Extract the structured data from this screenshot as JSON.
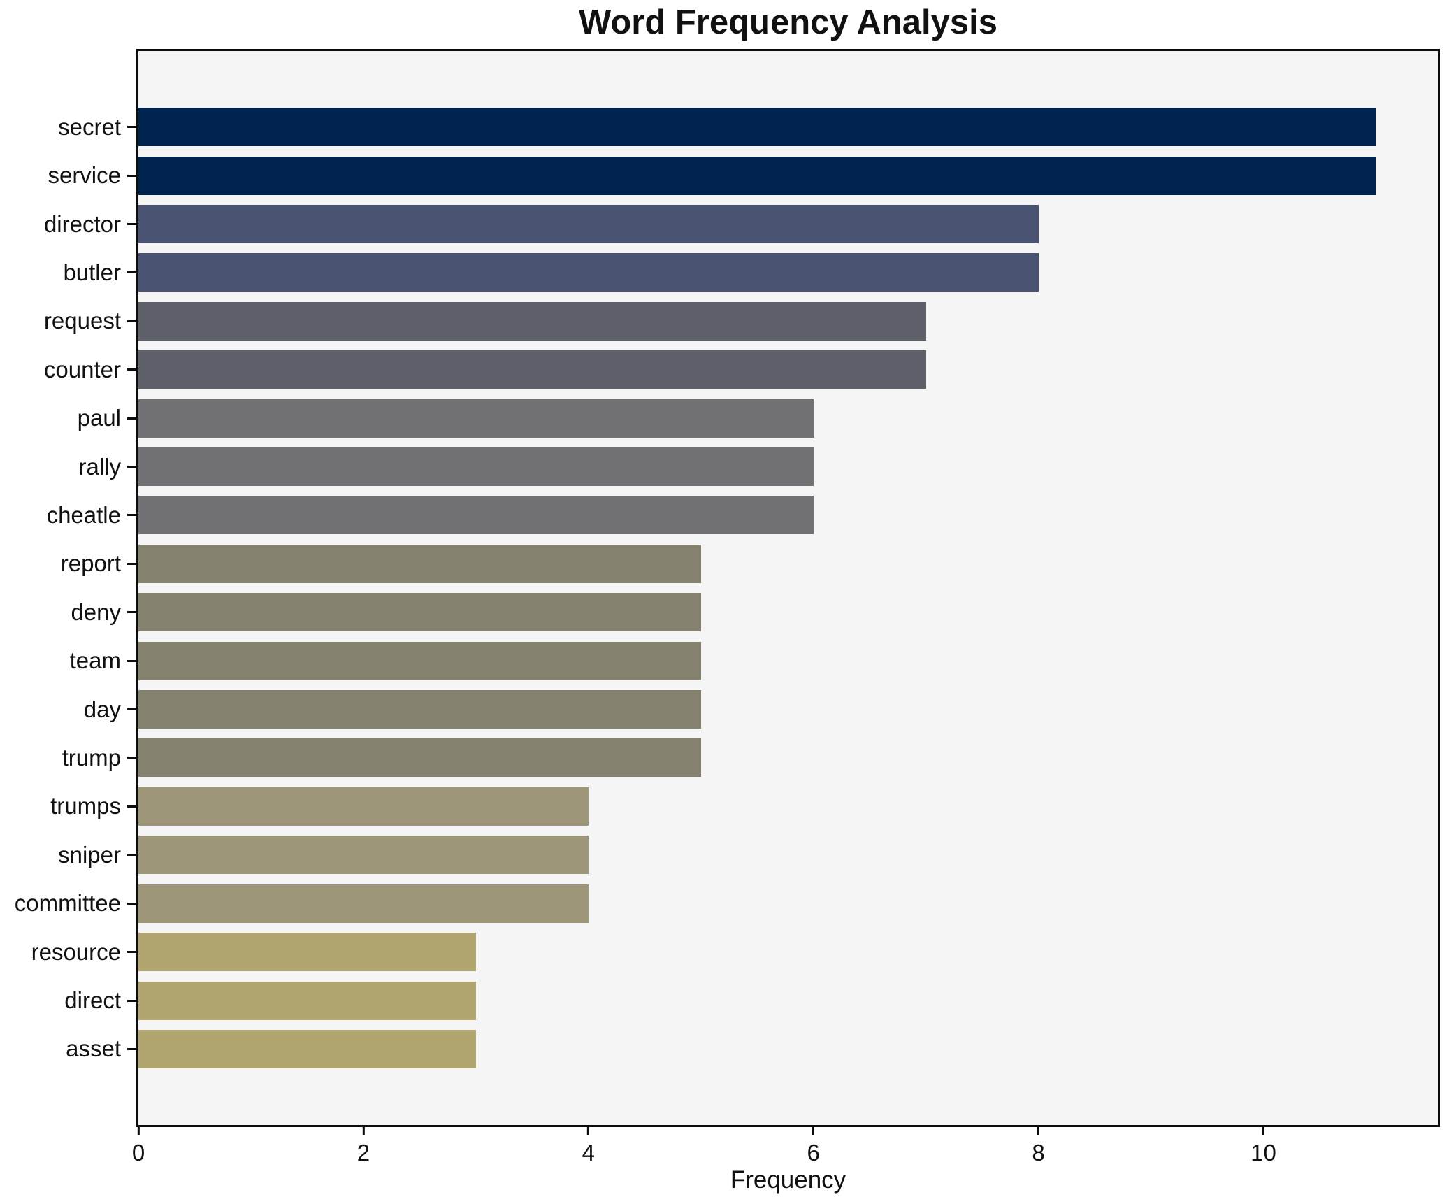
{
  "chart_data": {
    "type": "bar",
    "orientation": "horizontal",
    "title": "Word Frequency Analysis",
    "xlabel": "Frequency",
    "ylabel": "",
    "categories": [
      "secret",
      "service",
      "director",
      "butler",
      "request",
      "counter",
      "paul",
      "rally",
      "cheatle",
      "report",
      "deny",
      "team",
      "day",
      "trump",
      "trumps",
      "sniper",
      "committee",
      "resource",
      "direct",
      "asset"
    ],
    "values": [
      11,
      11,
      8,
      8,
      7,
      7,
      6,
      6,
      6,
      5,
      5,
      5,
      5,
      5,
      4,
      4,
      4,
      3,
      3,
      3
    ],
    "bar_colors": [
      "#01244f",
      "#01244f",
      "#4a5472",
      "#4a5472",
      "#5e6169",
      "#5e6169",
      "#717175",
      "#717175",
      "#717175",
      "#858270",
      "#858270",
      "#858270",
      "#858270",
      "#858270",
      "#9d9678",
      "#9d9678",
      "#9d9678",
      "#b1a66f",
      "#b1a66f",
      "#b1a66f"
    ],
    "xticks": [
      0,
      2,
      4,
      6,
      8,
      10
    ],
    "xlim": [
      0,
      11.55
    ],
    "grid": false,
    "legend_position": "none",
    "plot_background": "#f5f5f6",
    "figure_background": "#ffffff",
    "axis_color": "#0d0d0d",
    "bar_height_fraction": 0.8
  }
}
